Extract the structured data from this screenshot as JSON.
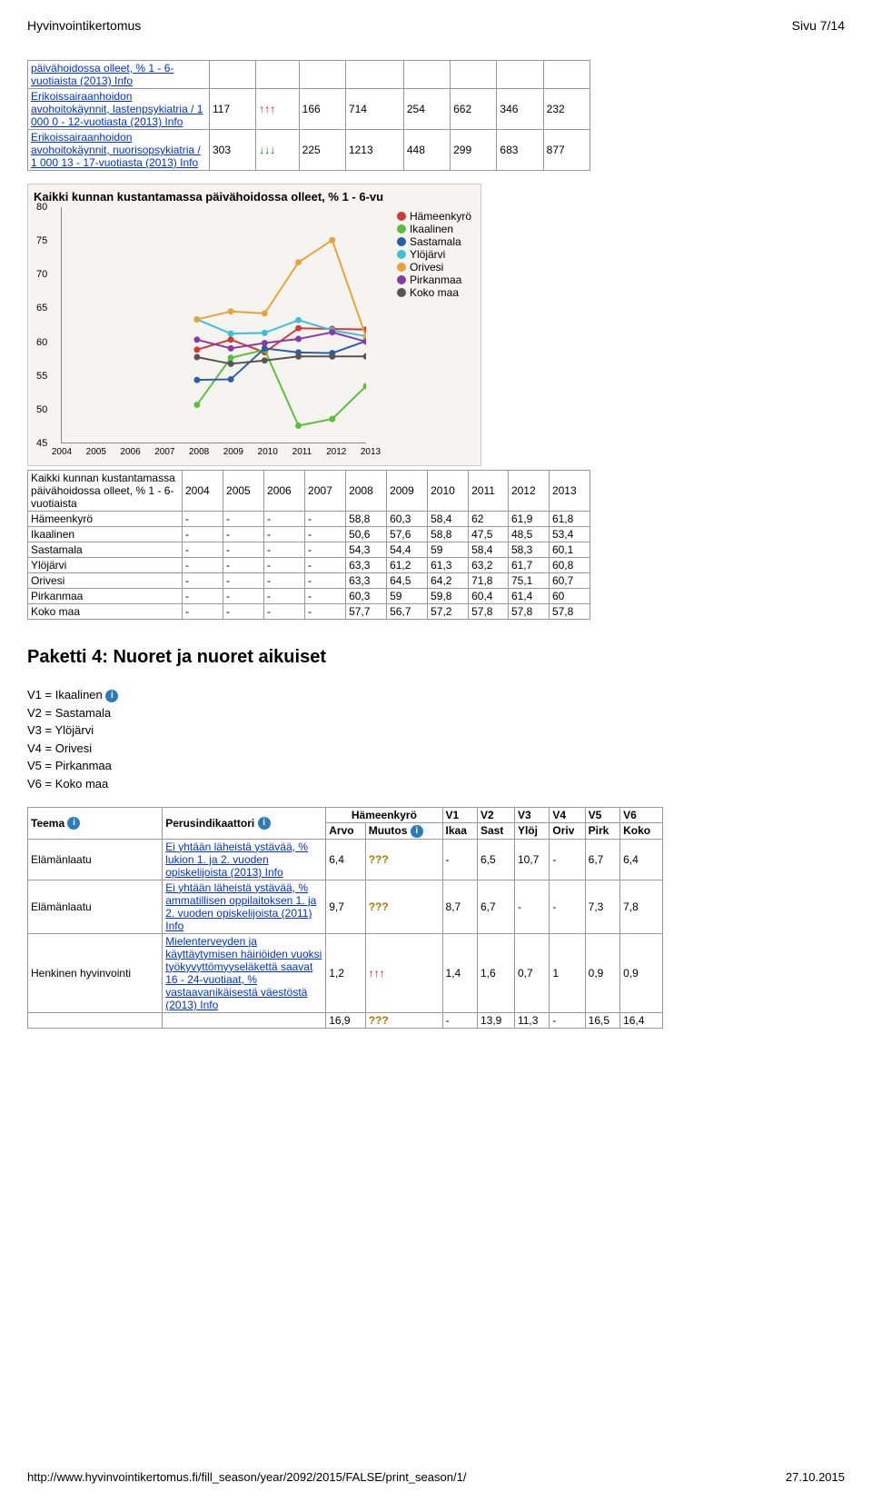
{
  "header": {
    "title": "Hyvinvointikertomus",
    "page": "Sivu 7/14"
  },
  "topTable": {
    "rows": [
      {
        "label": "päivähoidossa olleet, % 1 - 6-vuotiaista (2013) Info",
        "labelLink": true,
        "c1": "",
        "arrow": "",
        "c2": "",
        "c3": "",
        "c4": "",
        "c5": "",
        "c6": "",
        "c7": ""
      },
      {
        "label": "Erikoissairaanhoidon avohoitokäynnit, lastenpsykiatria / 1 000 0 - 12-vuotiasta (2013) Info",
        "labelLink": true,
        "c1": "117",
        "arrow": "up",
        "c2": "166",
        "c3": "714",
        "c4": "254",
        "c5": "662",
        "c6": "346",
        "c7": "232"
      },
      {
        "label": "Erikoissairaanhoidon avohoitokäynnit, nuorisopsykiatria / 1 000 13 - 17-vuotiasta (2013) Info",
        "labelLink": true,
        "c1": "303",
        "arrow": "down",
        "c2": "225",
        "c3": "1213",
        "c4": "448",
        "c5": "299",
        "c6": "683",
        "c7": "877"
      }
    ]
  },
  "chart": {
    "title": "Kaikki kunnan kustantamassa päivähoidossa olleet, % 1 - 6-vu",
    "background": "#f6f4f0",
    "ylim": [
      45,
      80
    ],
    "yticks": [
      45,
      50,
      55,
      60,
      65,
      70,
      75,
      80
    ],
    "xticks": [
      "2004",
      "2005",
      "2006",
      "2007",
      "2008",
      "2009",
      "2010",
      "2011",
      "2012",
      "2013"
    ],
    "series": [
      {
        "name": "Hämeenkyrö",
        "color": "#d23939",
        "values": [
          null,
          null,
          null,
          null,
          58.8,
          60.3,
          58.4,
          62,
          61.9,
          61.8
        ]
      },
      {
        "name": "Ikaalinen",
        "color": "#5bbf3a",
        "values": [
          null,
          null,
          null,
          null,
          50.6,
          57.6,
          58.8,
          47.5,
          48.5,
          53.4
        ]
      },
      {
        "name": "Sastamala",
        "color": "#2b5ea8",
        "values": [
          null,
          null,
          null,
          null,
          54.3,
          54.4,
          59,
          58.4,
          58.3,
          60.1
        ]
      },
      {
        "name": "Ylöjärvi",
        "color": "#3fbfd6",
        "values": [
          null,
          null,
          null,
          null,
          63.3,
          61.2,
          61.3,
          63.2,
          61.7,
          60.8
        ]
      },
      {
        "name": "Orivesi",
        "color": "#e6a33a",
        "values": [
          null,
          null,
          null,
          null,
          63.3,
          64.5,
          64.2,
          71.8,
          75.1,
          60.7
        ]
      },
      {
        "name": "Pirkanmaa",
        "color": "#8a3aa8",
        "values": [
          null,
          null,
          null,
          null,
          60.3,
          59,
          59.8,
          60.4,
          61.4,
          60
        ]
      },
      {
        "name": "Koko maa",
        "color": "#555555",
        "values": [
          null,
          null,
          null,
          null,
          57.7,
          56.7,
          57.2,
          57.8,
          57.8,
          57.8
        ]
      }
    ]
  },
  "chartTable": {
    "headerLabel": "Kaikki kunnan kustantamassa päivähoidossa olleet, % 1 - 6-vuotiaista",
    "years": [
      "2004",
      "2005",
      "2006",
      "2007",
      "2008",
      "2009",
      "2010",
      "2011",
      "2012",
      "2013"
    ],
    "rows": [
      {
        "name": "Hämeenkyrö",
        "cells": [
          "-",
          "-",
          "-",
          "-",
          "58,8",
          "60,3",
          "58,4",
          "62",
          "61,9",
          "61,8"
        ]
      },
      {
        "name": "Ikaalinen",
        "cells": [
          "-",
          "-",
          "-",
          "-",
          "50,6",
          "57,6",
          "58,8",
          "47,5",
          "48,5",
          "53,4"
        ]
      },
      {
        "name": "Sastamala",
        "cells": [
          "-",
          "-",
          "-",
          "-",
          "54,3",
          "54,4",
          "59",
          "58,4",
          "58,3",
          "60,1"
        ]
      },
      {
        "name": "Ylöjärvi",
        "cells": [
          "-",
          "-",
          "-",
          "-",
          "63,3",
          "61,2",
          "61,3",
          "63,2",
          "61,7",
          "60,8"
        ]
      },
      {
        "name": "Orivesi",
        "cells": [
          "-",
          "-",
          "-",
          "-",
          "63,3",
          "64,5",
          "64,2",
          "71,8",
          "75,1",
          "60,7"
        ]
      },
      {
        "name": "Pirkanmaa",
        "cells": [
          "-",
          "-",
          "-",
          "-",
          "60,3",
          "59",
          "59,8",
          "60,4",
          "61,4",
          "60"
        ]
      },
      {
        "name": "Koko maa",
        "cells": [
          "-",
          "-",
          "-",
          "-",
          "57,7",
          "56,7",
          "57,2",
          "57,8",
          "57,8",
          "57,8"
        ]
      }
    ]
  },
  "section4": {
    "title": "Paketti 4: Nuoret ja nuoret aikuiset",
    "vlist": [
      "V1 = Ikaalinen",
      "V2 = Sastamala",
      "V3 = Ylöjärvi",
      "V4 = Orivesi",
      "V5 = Pirkanmaa",
      "V6 = Koko maa"
    ],
    "teemaLabel": "Teema",
    "perusLabel": "Perusindikaattori",
    "hamLabel": "Hämeenkyrö",
    "arvoLabel": "Arvo",
    "muutosLabel": "Muutos",
    "cols": [
      "V1",
      "V2",
      "V3",
      "V4",
      "V5",
      "V6"
    ],
    "subcols": [
      "Ikaa",
      "Sast",
      "Ylöj",
      "Oriv",
      "Pirk",
      "Koko"
    ],
    "rows": [
      {
        "teema": "Elämänlaatu",
        "indikaattori": "Ei yhtään läheistä ystävää, % lukion 1. ja 2. vuoden opiskelijoista (2013) Info",
        "arvo": "6,4",
        "muutos": "???",
        "v": [
          "-",
          "6,5",
          "10,7",
          "-",
          "6,7",
          "6,4"
        ]
      },
      {
        "teema": "Elämänlaatu",
        "indikaattori": "Ei yhtään läheistä ystävää, % ammatillisen oppilaitoksen 1. ja 2. vuoden opiskelijoista (2011) Info",
        "arvo": "9,7",
        "muutos": "???",
        "v": [
          "8,7",
          "6,7",
          "-",
          "-",
          "7,3",
          "7,8"
        ]
      },
      {
        "teema": "Henkinen hyvinvointi",
        "indikaattori": "Mielenterveyden ja käyttäytymisen häiriöiden vuoksi työkyvyttömyyseläkettä saavat 16 - 24-vuotiaat, % vastaavanikäisestä väestöstä (2013) Info",
        "arvo": "1,2",
        "muutos": "up",
        "v": [
          "1,4",
          "1,6",
          "0,7",
          "1",
          "0,9",
          "0,9"
        ]
      },
      {
        "teema": "",
        "indikaattori": "",
        "arvo": "16,9",
        "muutos": "???",
        "v": [
          "-",
          "13,9",
          "11,3",
          "-",
          "16,5",
          "16,4"
        ]
      }
    ]
  },
  "footer": {
    "url": "http://www.hyvinvointikertomus.fi/fill_season/year/2092/2015/FALSE/print_season/1/",
    "date": "27.10.2015"
  }
}
